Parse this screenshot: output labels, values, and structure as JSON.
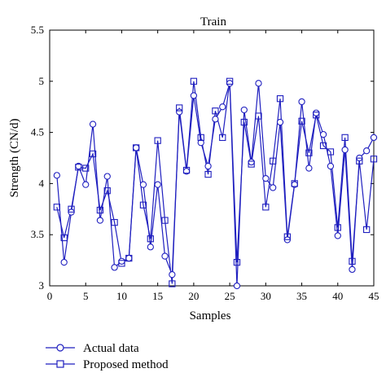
{
  "chart_data": {
    "type": "line",
    "title": "Train",
    "xlabel": "Samples",
    "ylabel": "Strength (CN/d)",
    "xlim": [
      0,
      45
    ],
    "ylim": [
      3,
      5.5
    ],
    "xticks": [
      0,
      5,
      10,
      15,
      20,
      25,
      30,
      35,
      40,
      45
    ],
    "yticks": [
      3,
      3.5,
      4,
      4.5,
      5,
      5.5
    ],
    "ytick_labels": [
      "3",
      "3.5",
      "4",
      "4.5",
      "5",
      "5.5"
    ],
    "grid": false,
    "legend_position": "bottom-left, below plot",
    "line_color": "#1f1fbf",
    "x": [
      1,
      2,
      3,
      4,
      5,
      6,
      7,
      8,
      9,
      10,
      11,
      12,
      13,
      14,
      15,
      16,
      17,
      18,
      19,
      20,
      21,
      22,
      23,
      24,
      25,
      26,
      27,
      28,
      29,
      30,
      31,
      32,
      33,
      34,
      35,
      36,
      37,
      38,
      39,
      40,
      41,
      42,
      43,
      44,
      45
    ],
    "series": [
      {
        "name": "Actual data",
        "marker": "circle",
        "values": [
          4.08,
          3.23,
          3.72,
          4.17,
          3.99,
          4.58,
          3.64,
          4.07,
          3.18,
          3.24,
          3.27,
          4.35,
          3.99,
          3.38,
          3.99,
          3.29,
          3.11,
          4.7,
          4.12,
          4.86,
          4.4,
          4.17,
          4.63,
          4.75,
          4.98,
          3.0,
          4.72,
          4.21,
          4.98,
          4.05,
          3.96,
          4.6,
          3.45,
          3.99,
          4.8,
          4.15,
          4.69,
          4.48,
          4.17,
          3.49,
          4.33,
          3.16,
          4.25,
          4.32,
          4.45
        ]
      },
      {
        "name": "Proposed method",
        "marker": "square",
        "values": [
          3.77,
          3.47,
          3.75,
          4.16,
          4.15,
          4.29,
          3.74,
          3.93,
          3.62,
          3.22,
          3.27,
          4.35,
          3.79,
          3.46,
          4.42,
          3.64,
          3.02,
          4.74,
          4.13,
          5.0,
          4.45,
          4.09,
          4.71,
          4.45,
          5.0,
          3.23,
          4.6,
          4.19,
          4.66,
          3.77,
          4.22,
          4.83,
          3.48,
          4.0,
          4.61,
          4.3,
          4.67,
          4.37,
          4.31,
          3.57,
          4.45,
          3.24,
          4.22,
          3.55,
          4.24
        ]
      }
    ]
  }
}
